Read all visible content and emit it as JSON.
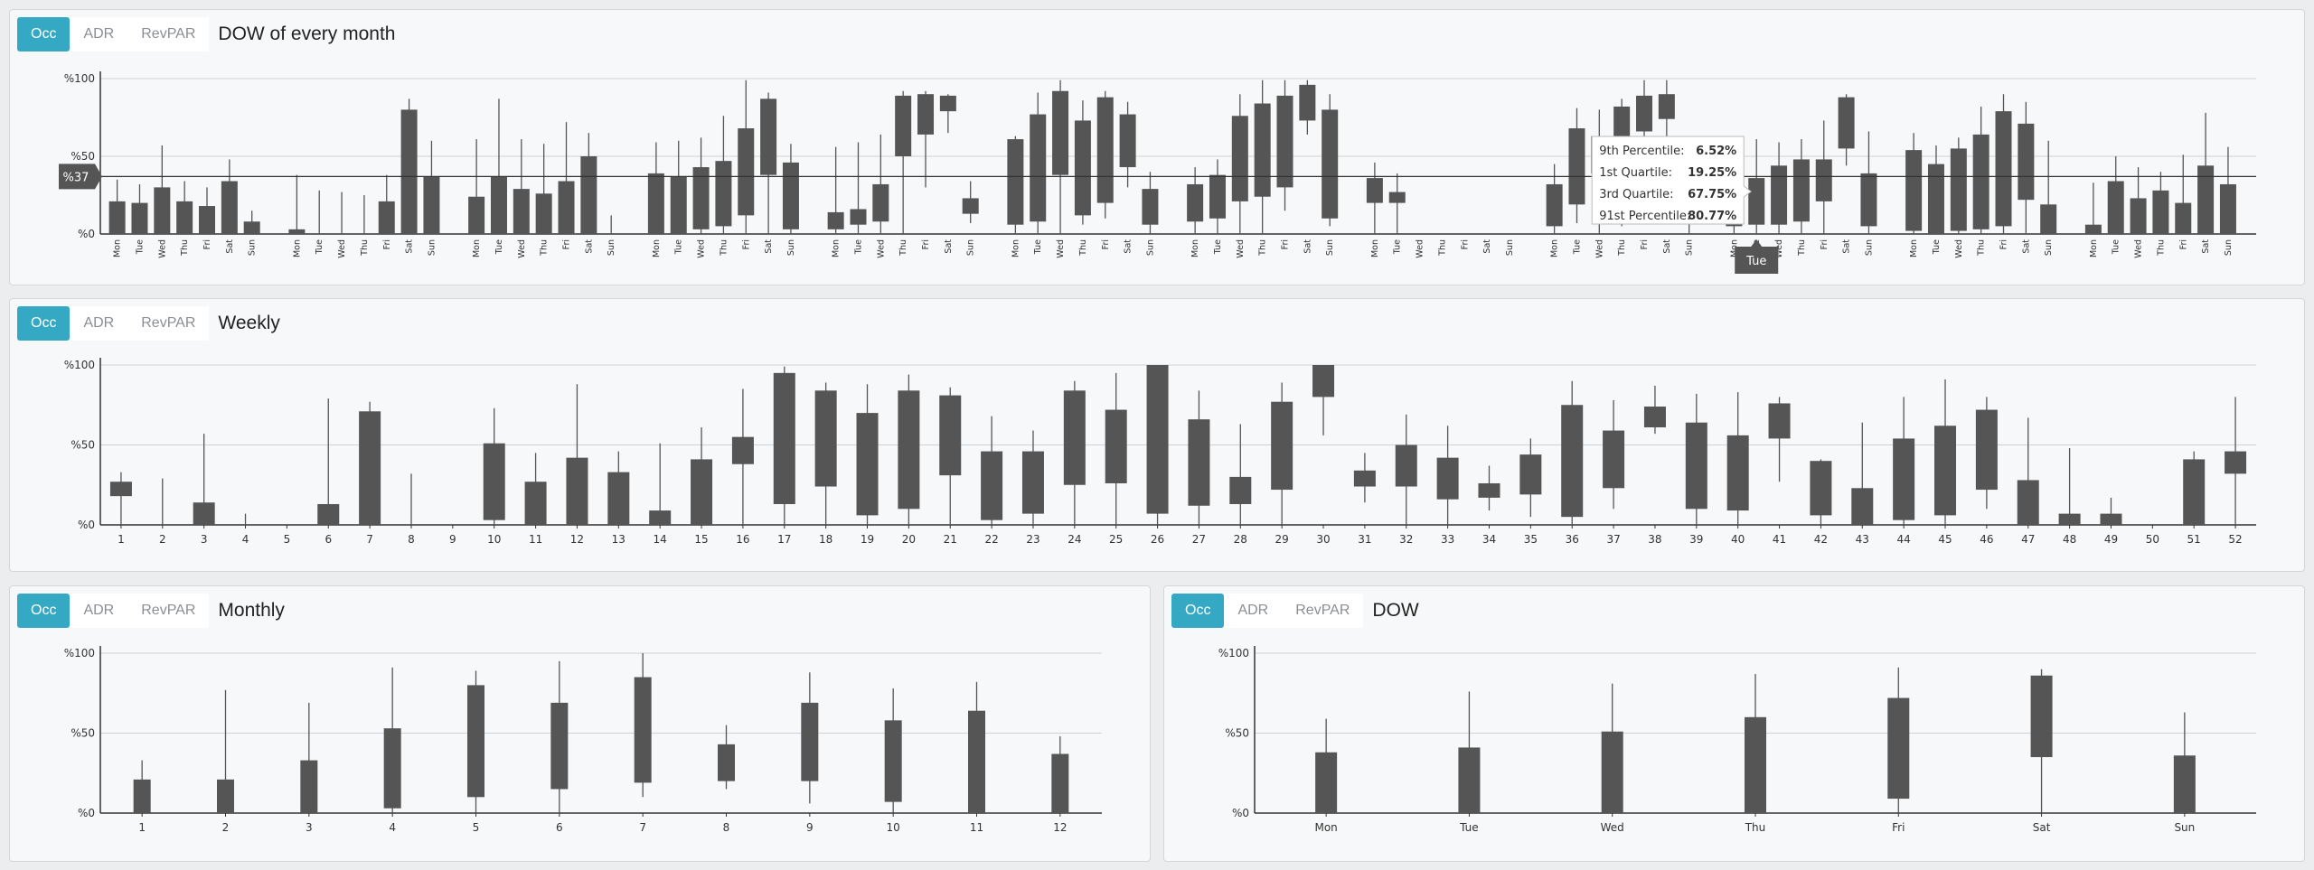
{
  "colors": {
    "accent": "#35a9c4",
    "bar": "#555555",
    "grid": "#cfd2d5",
    "axis": "#333333",
    "tooltip_bg": "#ffffff",
    "marker_bg": "#555555"
  },
  "panels": {
    "dow_month": {
      "tabs": [
        "Occ",
        "ADR",
        "RevPAR"
      ],
      "active_tab": "Occ",
      "title": "DOW of every month"
    },
    "weekly": {
      "tabs": [
        "Occ",
        "ADR",
        "RevPAR"
      ],
      "active_tab": "Occ",
      "title": "Weekly"
    },
    "monthly": {
      "tabs": [
        "Occ",
        "ADR",
        "RevPAR"
      ],
      "active_tab": "Occ",
      "title": "Monthly"
    },
    "dow": {
      "tabs": [
        "Occ",
        "ADR",
        "RevPAR"
      ],
      "active_tab": "Occ",
      "title": "DOW"
    }
  },
  "crosshair": {
    "y_label": "%37",
    "y_value": 37,
    "x_label": "Tue"
  },
  "tooltip": {
    "rows": [
      {
        "label": "9th Percentile:",
        "value": "6.52%"
      },
      {
        "label": "1st Quartile:",
        "value": "19.25%"
      },
      {
        "label": "3rd Quartile:",
        "value": "67.75%"
      },
      {
        "label": "91st Percentile:",
        "value": "80.77%"
      }
    ]
  },
  "chart_data": [
    {
      "id": "dow_month",
      "type": "box",
      "title": "DOW of every month",
      "ylim": [
        0,
        100
      ],
      "yticks": [
        "%0",
        "%50",
        "%100"
      ],
      "grid": true,
      "groups": [
        {
          "x": [
            "Mon",
            "Tue",
            "Wed",
            "Thu",
            "Fri",
            "Sat",
            "Sun"
          ],
          "q1": [
            0,
            0,
            0,
            0,
            0,
            0,
            0
          ],
          "q3": [
            21,
            20,
            30,
            21,
            18,
            34,
            8
          ],
          "p9": [
            0,
            0,
            0,
            0,
            0,
            0,
            0
          ],
          "p91": [
            35,
            32,
            57,
            34,
            30,
            48,
            15
          ]
        },
        {
          "x": [
            "Mon",
            "Tue",
            "Wed",
            "Thu",
            "Fri",
            "Sat",
            "Sun"
          ],
          "q1": [
            0,
            0,
            0,
            0,
            0,
            0,
            0
          ],
          "q3": [
            3,
            0,
            0,
            0,
            21,
            80,
            37
          ],
          "p9": [
            0,
            0,
            0,
            0,
            0,
            0,
            0
          ],
          "p91": [
            38,
            28,
            27,
            25,
            38,
            87,
            60
          ]
        },
        {
          "x": [
            "Mon",
            "Tue",
            "Wed",
            "Thu",
            "Fri",
            "Sat",
            "Sun"
          ],
          "q1": [
            0,
            0,
            0,
            0,
            0,
            0,
            3
          ],
          "q3": [
            24,
            37,
            29,
            26,
            34,
            50,
            3
          ],
          "p9": [
            0,
            0,
            0,
            0,
            0,
            0,
            0
          ],
          "p91": [
            61,
            87,
            61,
            58,
            72,
            65,
            12
          ]
        },
        {
          "x": [
            "Mon",
            "Tue",
            "Wed",
            "Thu",
            "Fri",
            "Sat",
            "Sun"
          ],
          "q1": [
            0,
            0,
            3,
            5,
            12,
            38,
            3
          ],
          "q3": [
            39,
            37,
            43,
            47,
            68,
            87,
            46
          ],
          "p9": [
            0,
            0,
            0,
            0,
            0,
            0,
            0
          ],
          "p91": [
            59,
            60,
            62,
            76,
            99,
            91,
            58
          ]
        },
        {
          "x": [
            "Mon",
            "Tue",
            "Wed",
            "Thu",
            "Fri",
            "Sat",
            "Sun"
          ],
          "q1": [
            3,
            6,
            8,
            50,
            64,
            79,
            13
          ],
          "q3": [
            14,
            16,
            32,
            89,
            90,
            89,
            23
          ],
          "p9": [
            0,
            0,
            0,
            0,
            30,
            65,
            7
          ],
          "p91": [
            56,
            59,
            64,
            92,
            92,
            90,
            34
          ]
        },
        {
          "x": [
            "Mon",
            "Tue",
            "Wed",
            "Thu",
            "Fri",
            "Sat",
            "Sun"
          ],
          "q1": [
            6,
            8,
            38,
            12,
            20,
            43,
            6
          ],
          "q3": [
            61,
            77,
            92,
            73,
            88,
            77,
            29
          ],
          "p9": [
            0,
            0,
            0,
            6,
            10,
            30,
            0
          ],
          "p91": [
            63,
            91,
            99,
            86,
            92,
            85,
            40
          ]
        },
        {
          "x": [
            "Mon",
            "Tue",
            "Wed",
            "Thu",
            "Fri",
            "Sat",
            "Sun"
          ],
          "q1": [
            8,
            10,
            21,
            24,
            30,
            73,
            10
          ],
          "q3": [
            32,
            38,
            76,
            84,
            89,
            96,
            80
          ],
          "p9": [
            0,
            0,
            0,
            0,
            15,
            64,
            5
          ],
          "p91": [
            43,
            48,
            90,
            99,
            99,
            99,
            90
          ]
        },
        {
          "x": [
            "Mon",
            "Tue",
            "Wed",
            "Thu",
            "Fri",
            "Sat",
            "Sun"
          ],
          "q1": [
            20,
            20,
            0,
            0,
            0,
            0,
            0
          ],
          "q3": [
            36,
            27,
            0,
            0,
            0,
            0,
            0
          ],
          "p9": [
            0,
            0,
            0,
            0,
            0,
            0,
            0
          ],
          "p91": [
            46,
            39,
            0,
            0,
            0,
            0,
            0
          ]
        },
        {
          "x": [
            "Mon",
            "Tue",
            "Wed",
            "Thu",
            "Fri",
            "Sat",
            "Sun"
          ],
          "q1": [
            5,
            19,
            39,
            50,
            66,
            74,
            8
          ],
          "q3": [
            32,
            68,
            63,
            82,
            89,
            90,
            42
          ],
          "p9": [
            0,
            7,
            0,
            5,
            10,
            30,
            0
          ],
          "p91": [
            45,
            81,
            80,
            87,
            99,
            99,
            63
          ]
        },
        {
          "x": [
            "Mon",
            "Tue",
            "Wed",
            "Thu",
            "Fri",
            "Sat",
            "Sun"
          ],
          "q1": [
            5,
            6,
            6,
            8,
            21,
            55,
            5
          ],
          "q3": [
            43,
            36,
            44,
            48,
            48,
            88,
            39
          ],
          "p9": [
            0,
            0,
            0,
            0,
            0,
            44,
            0
          ],
          "p91": [
            58,
            61,
            59,
            61,
            73,
            90,
            66
          ]
        },
        {
          "x": [
            "Mon",
            "Tue",
            "Wed",
            "Thu",
            "Fri",
            "Sat",
            "Sun"
          ],
          "q1": [
            2,
            0,
            2,
            3,
            5,
            22,
            0
          ],
          "q3": [
            54,
            45,
            55,
            64,
            79,
            71,
            19
          ],
          "p9": [
            0,
            0,
            0,
            0,
            0,
            0,
            0
          ],
          "p91": [
            65,
            57,
            62,
            82,
            90,
            85,
            60
          ]
        },
        {
          "x": [
            "Mon",
            "Tue",
            "Wed",
            "Thu",
            "Fri",
            "Sat",
            "Sun"
          ],
          "q1": [
            0,
            0,
            0,
            0,
            0,
            0,
            0
          ],
          "q3": [
            6,
            34,
            23,
            28,
            20,
            44,
            32
          ],
          "p9": [
            0,
            0,
            0,
            0,
            0,
            0,
            0
          ],
          "p91": [
            33,
            50,
            43,
            40,
            51,
            78,
            56
          ]
        }
      ]
    },
    {
      "id": "weekly",
      "type": "box",
      "title": "Weekly",
      "ylim": [
        0,
        100
      ],
      "yticks": [
        "%0",
        "%50",
        "%100"
      ],
      "grid": true,
      "x": [
        "1",
        "2",
        "3",
        "4",
        "5",
        "6",
        "7",
        "8",
        "9",
        "10",
        "11",
        "12",
        "13",
        "14",
        "15",
        "16",
        "17",
        "18",
        "19",
        "20",
        "21",
        "22",
        "23",
        "24",
        "25",
        "26",
        "27",
        "28",
        "29",
        "30",
        "31",
        "32",
        "33",
        "34",
        "35",
        "36",
        "37",
        "38",
        "39",
        "40",
        "41",
        "42",
        "43",
        "44",
        "45",
        "46",
        "47",
        "48",
        "49",
        "50",
        "51",
        "52"
      ],
      "q1": [
        18,
        0,
        0,
        0,
        0,
        0,
        0,
        0,
        0,
        3,
        0,
        0,
        0,
        0,
        0,
        38,
        13,
        24,
        6,
        10,
        31,
        3,
        7,
        25,
        26,
        7,
        12,
        13,
        22,
        80,
        24,
        24,
        16,
        17,
        19,
        5,
        23,
        61,
        10,
        9,
        54,
        6,
        0,
        3,
        6,
        22,
        0,
        0,
        0,
        0,
        0,
        32
      ],
      "q3": [
        27,
        0,
        14,
        0,
        0,
        13,
        71,
        0,
        0,
        51,
        27,
        42,
        33,
        9,
        41,
        55,
        95,
        84,
        70,
        84,
        81,
        46,
        46,
        84,
        72,
        100,
        66,
        30,
        77,
        100,
        34,
        50,
        42,
        26,
        44,
        75,
        59,
        74,
        64,
        56,
        76,
        40,
        23,
        54,
        62,
        72,
        28,
        7,
        7,
        0,
        41,
        46
      ],
      "p9": [
        0,
        0,
        0,
        0,
        0,
        0,
        0,
        0,
        0,
        0,
        0,
        0,
        0,
        0,
        0,
        0,
        0,
        0,
        0,
        0,
        0,
        0,
        0,
        0,
        0,
        0,
        0,
        0,
        0,
        56,
        14,
        0,
        0,
        9,
        5,
        0,
        10,
        57,
        0,
        0,
        27,
        0,
        0,
        0,
        0,
        10,
        0,
        0,
        0,
        0,
        0,
        0
      ],
      "p91": [
        33,
        29,
        57,
        7,
        0,
        79,
        77,
        32,
        0,
        73,
        45,
        88,
        46,
        51,
        61,
        85,
        99,
        89,
        88,
        94,
        86,
        68,
        59,
        90,
        95,
        100,
        84,
        63,
        89,
        100,
        45,
        69,
        62,
        37,
        54,
        90,
        78,
        87,
        82,
        83,
        80,
        41,
        64,
        80,
        91,
        80,
        67,
        48,
        17,
        0,
        46,
        80
      ]
    },
    {
      "id": "monthly",
      "type": "box",
      "title": "Monthly",
      "ylim": [
        0,
        100
      ],
      "yticks": [
        "%0",
        "%50",
        "%100"
      ],
      "grid": true,
      "x": [
        "1",
        "2",
        "3",
        "4",
        "5",
        "6",
        "7",
        "8",
        "9",
        "10",
        "11",
        "12"
      ],
      "q1": [
        0,
        0,
        0,
        3,
        10,
        15,
        19,
        20,
        20,
        7,
        0,
        0
      ],
      "q3": [
        21,
        21,
        33,
        53,
        80,
        69,
        85,
        43,
        69,
        58,
        64,
        37
      ],
      "p9": [
        0,
        0,
        0,
        0,
        0,
        0,
        10,
        15,
        6,
        0,
        0,
        0
      ],
      "p91": [
        33,
        77,
        69,
        91,
        89,
        95,
        100,
        55,
        88,
        78,
        82,
        48
      ]
    },
    {
      "id": "dow",
      "type": "box",
      "title": "DOW",
      "ylim": [
        0,
        100
      ],
      "yticks": [
        "%0",
        "%50",
        "%100"
      ],
      "grid": true,
      "x": [
        "Mon",
        "Tue",
        "Wed",
        "Thu",
        "Fri",
        "Sat",
        "Sun"
      ],
      "q1": [
        0,
        0,
        0,
        0,
        9,
        35,
        0
      ],
      "q3": [
        38,
        41,
        51,
        60,
        72,
        86,
        36
      ],
      "p9": [
        0,
        0,
        0,
        0,
        0,
        0,
        0
      ],
      "p91": [
        59,
        76,
        81,
        87,
        91,
        90,
        63
      ]
    }
  ]
}
